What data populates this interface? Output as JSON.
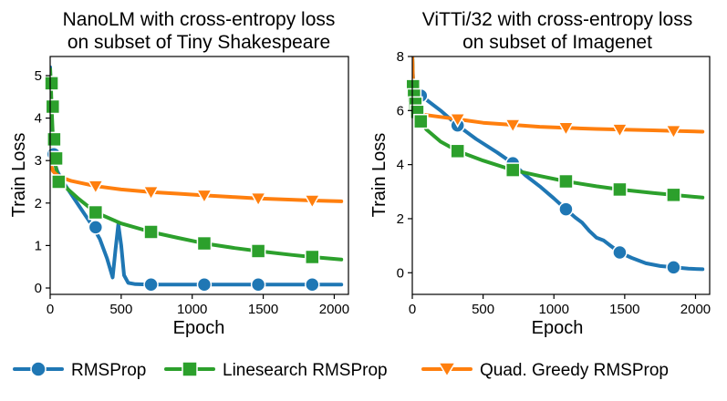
{
  "legend": {
    "placement": "bottom",
    "items": [
      {
        "name": "RMSProp",
        "color": "#1f77b4",
        "marker": "circle"
      },
      {
        "name": "Linesearch RMSProp",
        "color": "#2ca02c",
        "marker": "square"
      },
      {
        "name": "Quad. Greedy RMSProp",
        "color": "#ff7f0e",
        "marker": "triangle-down"
      }
    ]
  },
  "chart_data": [
    {
      "type": "line",
      "title_lines": [
        "NanoLM with cross-entropy loss",
        "on subset of Tiny Shakespeare"
      ],
      "xlabel": "Epoch",
      "ylabel": "Train Loss",
      "xlim": [
        0,
        2100
      ],
      "ylim": [
        -0.15,
        5.45
      ],
      "xticks": [
        0,
        500,
        1000,
        1500,
        2000
      ],
      "yticks": [
        0,
        1,
        2,
        3,
        4,
        5
      ],
      "grid": false,
      "series": [
        {
          "name": "RMSProp",
          "x": [
            0,
            5,
            10,
            20,
            30,
            50,
            80,
            120,
            200,
            300,
            350,
            400,
            440,
            460,
            480,
            500,
            520,
            550,
            600,
            700,
            900,
            1100,
            1300,
            1500,
            1700,
            1900,
            2050
          ],
          "y": [
            5.2,
            4.2,
            3.6,
            3.15,
            2.95,
            2.75,
            2.55,
            2.35,
            1.95,
            1.45,
            1.15,
            0.7,
            0.25,
            0.9,
            1.5,
            1.0,
            0.3,
            0.12,
            0.09,
            0.08,
            0.08,
            0.08,
            0.08,
            0.08,
            0.08,
            0.08,
            0.08
          ],
          "markers_x": [
            25,
            320,
            710,
            1085,
            1465,
            1845
          ],
          "markers_y": [
            3.15,
            1.43,
            0.08,
            0.08,
            0.08,
            0.08
          ]
        },
        {
          "name": "Linesearch RMSProp",
          "x": [
            0,
            5,
            10,
            20,
            30,
            45,
            60,
            100,
            200,
            320,
            500,
            710,
            900,
            1085,
            1300,
            1465,
            1700,
            1845,
            2050
          ],
          "y": [
            5.15,
            4.8,
            4.25,
            3.5,
            3.05,
            2.75,
            2.5,
            2.4,
            2.1,
            1.78,
            1.52,
            1.32,
            1.18,
            1.05,
            0.94,
            0.87,
            0.78,
            0.73,
            0.67
          ],
          "markers_x": [
            10,
            18,
            28,
            42,
            60,
            320,
            710,
            1085,
            1465,
            1845
          ],
          "markers_y": [
            4.82,
            4.27,
            3.5,
            3.05,
            2.5,
            1.78,
            1.32,
            1.05,
            0.87,
            0.73
          ]
        },
        {
          "name": "Quad. Greedy RMSProp",
          "x": [
            0,
            5,
            10,
            20,
            40,
            80,
            150,
            320,
            500,
            710,
            900,
            1085,
            1300,
            1465,
            1700,
            1845,
            2050
          ],
          "y": [
            3.3,
            3.0,
            2.85,
            2.75,
            2.68,
            2.6,
            2.52,
            2.4,
            2.32,
            2.26,
            2.22,
            2.18,
            2.14,
            2.11,
            2.08,
            2.06,
            2.04
          ],
          "markers_x": [
            320,
            710,
            1085,
            1465,
            1845
          ],
          "markers_y": [
            2.4,
            2.26,
            2.18,
            2.11,
            2.06
          ]
        }
      ]
    },
    {
      "type": "line",
      "title_lines": [
        "ViTTi/32 with cross-entropy loss",
        "on subset of Imagenet"
      ],
      "xlabel": "Epoch",
      "ylabel": "Train Loss",
      "xlim": [
        0,
        2100
      ],
      "ylim": [
        -0.8,
        8.0
      ],
      "xticks": [
        0,
        500,
        1000,
        1500,
        2000
      ],
      "yticks": [
        0,
        2,
        4,
        6,
        8
      ],
      "grid": false,
      "series": [
        {
          "name": "RMSProp",
          "x": [
            0,
            5,
            10,
            20,
            40,
            60,
            100,
            200,
            320,
            450,
            600,
            710,
            800,
            900,
            1000,
            1085,
            1150,
            1200,
            1250,
            1300,
            1350,
            1400,
            1465,
            1550,
            1650,
            1750,
            1845,
            1950,
            2050
          ],
          "y": [
            8.0,
            7.2,
            6.9,
            6.7,
            6.6,
            6.55,
            6.4,
            6.0,
            5.45,
            4.95,
            4.45,
            4.05,
            3.6,
            3.2,
            2.75,
            2.35,
            2.05,
            1.85,
            1.55,
            1.3,
            1.2,
            1.0,
            0.75,
            0.55,
            0.35,
            0.25,
            0.2,
            0.15,
            0.13
          ],
          "markers_x": [
            60,
            320,
            710,
            1085,
            1465,
            1845
          ],
          "markers_y": [
            6.55,
            5.45,
            4.05,
            2.35,
            0.75,
            0.2
          ]
        },
        {
          "name": "Linesearch RMSProp",
          "x": [
            0,
            5,
            10,
            20,
            40,
            60,
            100,
            200,
            320,
            500,
            710,
            900,
            1085,
            1300,
            1465,
            1700,
            1845,
            2050
          ],
          "y": [
            8.0,
            7.0,
            6.6,
            6.25,
            5.95,
            5.6,
            5.3,
            4.85,
            4.5,
            4.15,
            3.8,
            3.58,
            3.38,
            3.2,
            3.08,
            2.95,
            2.88,
            2.78
          ],
          "markers_x": [
            5,
            12,
            22,
            35,
            60,
            320,
            710,
            1085,
            1465,
            1845
          ],
          "markers_y": [
            6.9,
            6.55,
            6.25,
            5.95,
            5.6,
            4.5,
            3.8,
            3.38,
            3.08,
            2.88
          ]
        },
        {
          "name": "Quad. Greedy RMSProp",
          "x": [
            0,
            5,
            10,
            20,
            40,
            80,
            150,
            320,
            500,
            710,
            900,
            1085,
            1300,
            1465,
            1700,
            1845,
            2050
          ],
          "y": [
            8.0,
            7.0,
            6.4,
            6.1,
            5.95,
            5.85,
            5.8,
            5.68,
            5.55,
            5.47,
            5.4,
            5.36,
            5.32,
            5.3,
            5.27,
            5.25,
            5.22
          ],
          "markers_x": [
            320,
            710,
            1085,
            1465,
            1845
          ],
          "markers_y": [
            5.68,
            5.47,
            5.36,
            5.3,
            5.25
          ]
        }
      ]
    }
  ]
}
